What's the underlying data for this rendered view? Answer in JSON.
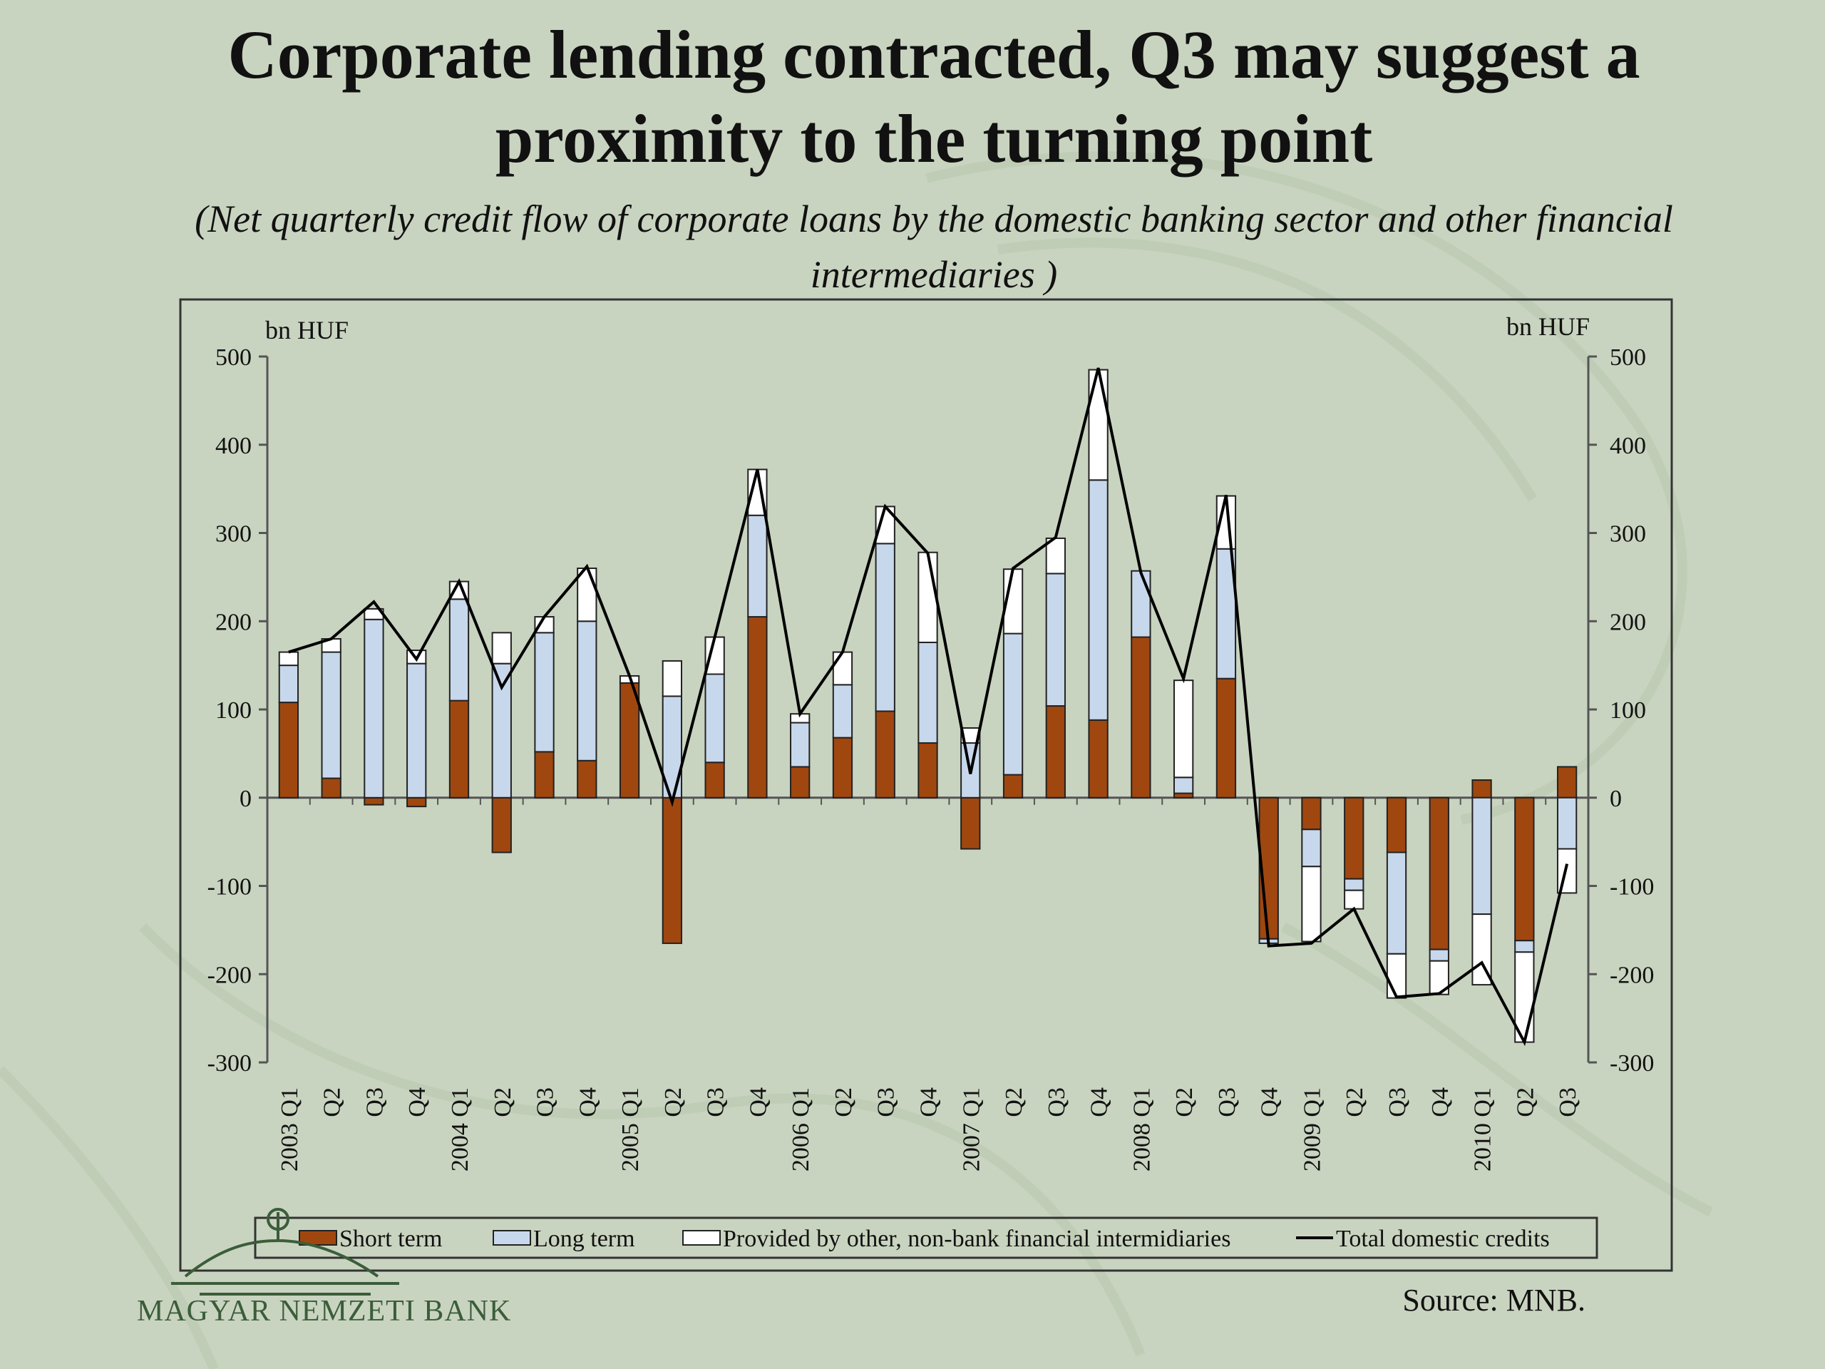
{
  "title": "Corporate lending contracted, Q3 may suggest a proximity to the turning point",
  "subtitle": "(Net quarterly credit flow of  corporate loans by the domestic banking sector and other financial intermediaries )",
  "source": "Source: MNB.",
  "logo_text": "MAGYAR NEMZETI BANK",
  "colors": {
    "background": "#c9d4c0",
    "short_term": "#a0470f",
    "long_term": "#c8d8ec",
    "other": "#ffffff",
    "total_line": "#000000"
  },
  "chart_data": {
    "type": "bar",
    "stacked": true,
    "y_unit_left": "bn HUF",
    "y_unit_right": "bn HUF",
    "ylim": [
      -300,
      500
    ],
    "yticks": [
      500,
      400,
      300,
      200,
      100,
      0,
      -100,
      -200,
      -300
    ],
    "grid": false,
    "legend_position": "bottom",
    "categories": [
      "2003 Q1",
      "Q2",
      "Q3",
      "Q4",
      "2004 Q1",
      "Q2",
      "Q3",
      "Q4",
      "2005 Q1",
      "Q2",
      "Q3",
      "Q4",
      "2006 Q1",
      "Q2",
      "Q3",
      "Q4",
      "2007 Q1",
      "Q2",
      "Q3",
      "Q4",
      "2008 Q1",
      "Q2",
      "Q3",
      "Q4",
      "2009 Q1",
      "Q2",
      "Q3",
      "Q4",
      "2010 Q1",
      "Q2",
      "Q3"
    ],
    "series": [
      {
        "name": "Short term",
        "kind": "bar",
        "values": [
          108,
          22,
          -8,
          -10,
          110,
          -62,
          52,
          42,
          130,
          -165,
          40,
          205,
          35,
          68,
          98,
          62,
          -58,
          26,
          104,
          88,
          182,
          5,
          135,
          -160,
          -36,
          -92,
          -62,
          -172,
          20,
          -162,
          35
        ]
      },
      {
        "name": "Long term",
        "kind": "bar",
        "values": [
          42,
          143,
          202,
          152,
          115,
          152,
          135,
          158,
          0,
          115,
          100,
          115,
          50,
          60,
          190,
          114,
          62,
          160,
          150,
          272,
          75,
          18,
          147,
          -5,
          -42,
          -13,
          -115,
          -13,
          -132,
          -13,
          -58
        ]
      },
      {
        "name": "Provided by other, non-bank financial intermidiaries",
        "kind": "bar",
        "values": [
          15,
          15,
          12,
          15,
          20,
          35,
          18,
          60,
          8,
          40,
          42,
          52,
          10,
          37,
          42,
          102,
          17,
          73,
          40,
          125,
          0,
          110,
          60,
          0,
          -85,
          -21,
          -50,
          -38,
          -80,
          -102,
          -50
        ]
      },
      {
        "name": "Total domestic credits",
        "kind": "line",
        "values": [
          165,
          180,
          222,
          157,
          245,
          125,
          205,
          262,
          138,
          -5,
          182,
          372,
          95,
          165,
          330,
          277,
          27,
          260,
          295,
          487,
          255,
          135,
          343,
          -168,
          -165,
          -126,
          -226,
          -222,
          -187,
          -277,
          -75
        ]
      }
    ]
  }
}
